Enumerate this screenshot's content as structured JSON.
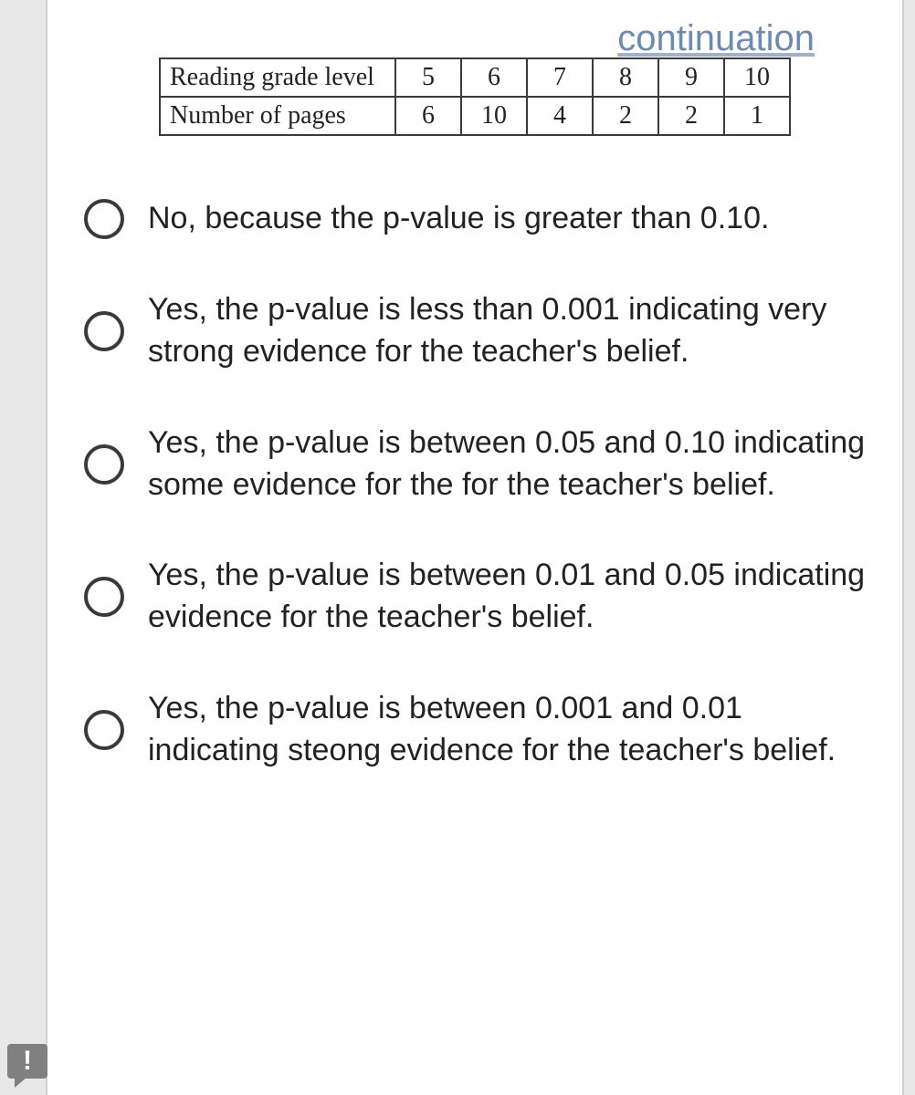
{
  "header_label": "continuation",
  "table": {
    "rows": [
      {
        "label": "Reading grade level",
        "cells": [
          "5",
          "6",
          "7",
          "8",
          "9",
          "10"
        ]
      },
      {
        "label": "Number of pages",
        "cells": [
          "6",
          "10",
          "4",
          "2",
          "2",
          "1"
        ]
      }
    ],
    "border_color": "#3a3a3a",
    "font": "Georgia",
    "cell_fontsize": 28
  },
  "options": [
    "No, because the p-value is greater than 0.10.",
    "Yes, the p-value is less than 0.001 indicating very strong evidence for the teacher's belief.",
    "Yes, the p-value is between 0.05 and 0.10 indicating some evidence for the for the teacher's belief.",
    "Yes, the p-value is between 0.01 and 0.05 indicating evidence for the teacher's belief.",
    "Yes, the p-value is between 0.001 and 0.01 indicating steong evidence for the teacher's belief."
  ],
  "colors": {
    "page_bg": "#ffffff",
    "outer_bg": "#e8e8e8",
    "header_text": "#6b8bb5",
    "body_text": "#222222",
    "radio_border": "#3a3a3a",
    "feedback_icon_bg": "#808080"
  },
  "typography": {
    "header_fontsize": 40,
    "option_fontsize": 34,
    "option_lineheight": 1.35
  },
  "feedback_icon_glyph": "!"
}
